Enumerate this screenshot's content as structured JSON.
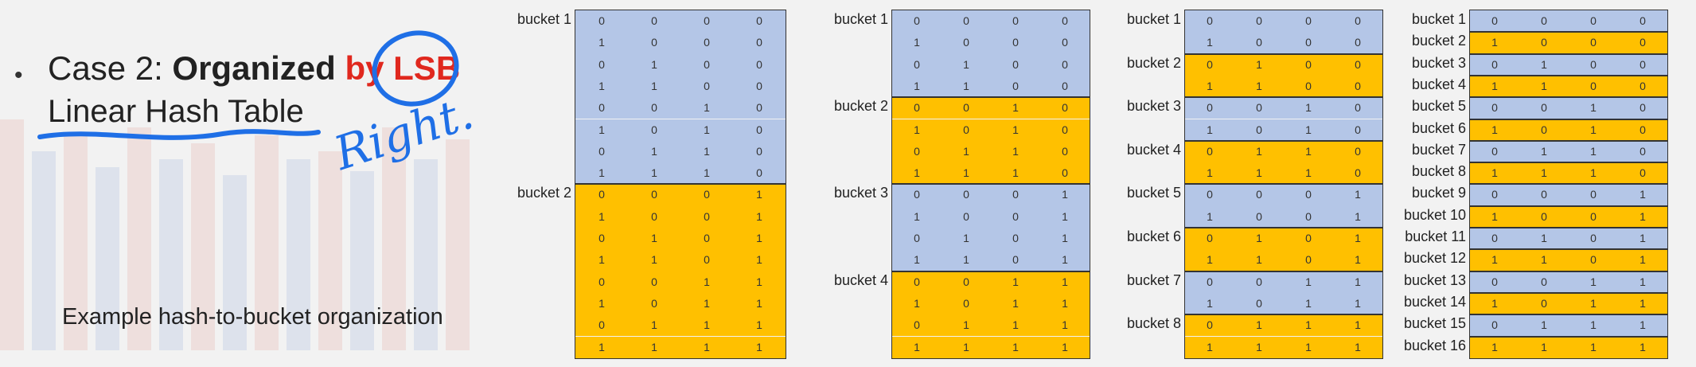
{
  "slide": {
    "bullet": "•",
    "title_prefix": "Case 2: ",
    "title_bold": "Organized",
    "title_red": "by LSB",
    "title_line2": "Linear Hash Table",
    "caption": "Example hash-to-bucket organization",
    "annotation_text": "Right."
  },
  "colors": {
    "blue": "#b4c6e7",
    "orange": "#ffc000",
    "accent_red": "#e0281e",
    "ink_blue": "#1f6fe6"
  },
  "binary_rows": [
    [
      "0",
      "0",
      "0",
      "0"
    ],
    [
      "1",
      "0",
      "0",
      "0"
    ],
    [
      "0",
      "1",
      "0",
      "0"
    ],
    [
      "1",
      "1",
      "0",
      "0"
    ],
    [
      "0",
      "0",
      "1",
      "0"
    ],
    [
      "1",
      "0",
      "1",
      "0"
    ],
    [
      "0",
      "1",
      "1",
      "0"
    ],
    [
      "1",
      "1",
      "1",
      "0"
    ],
    [
      "0",
      "0",
      "0",
      "1"
    ],
    [
      "1",
      "0",
      "0",
      "1"
    ],
    [
      "0",
      "1",
      "0",
      "1"
    ],
    [
      "1",
      "1",
      "0",
      "1"
    ],
    [
      "0",
      "0",
      "1",
      "1"
    ],
    [
      "1",
      "0",
      "1",
      "1"
    ],
    [
      "0",
      "1",
      "1",
      "1"
    ],
    [
      "1",
      "1",
      "1",
      "1"
    ]
  ],
  "panels": [
    {
      "buckets": [
        "bucket 1",
        "bucket 2"
      ]
    },
    {
      "buckets": [
        "bucket 1",
        "bucket 2",
        "bucket 3",
        "bucket 4"
      ]
    },
    {
      "buckets": [
        "bucket 1",
        "bucket 2",
        "bucket 3",
        "bucket 4",
        "bucket 5",
        "bucket 6",
        "bucket 7",
        "bucket 8"
      ]
    },
    {
      "buckets": [
        "bucket 1",
        "bucket 2",
        "bucket 3",
        "bucket 4",
        "bucket 5",
        "bucket 6",
        "bucket 7",
        "bucket 8",
        "bucket 9",
        "bucket 10",
        "bucket 11",
        "bucket 12",
        "bucket 13",
        "bucket 14",
        "bucket 15",
        "bucket 16"
      ]
    }
  ]
}
